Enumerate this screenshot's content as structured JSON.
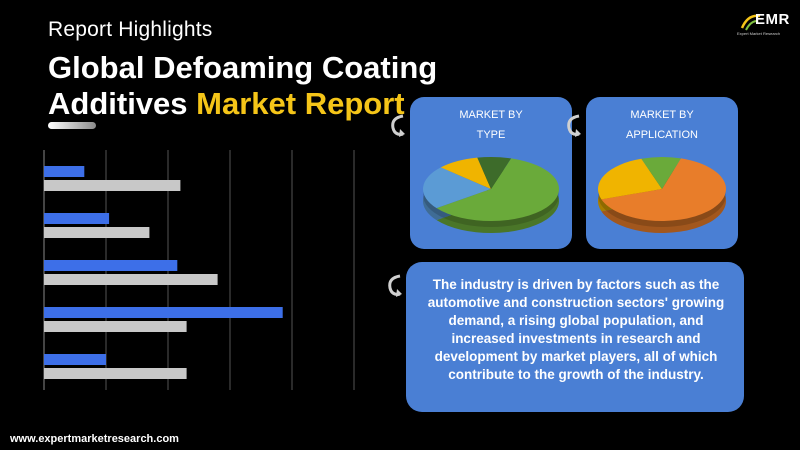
{
  "header": {
    "subtitle": "Report Highlights",
    "title_line1": "Global Defoaming Coating",
    "title_line2_plain": "Additives ",
    "title_line2_highlight": "Market Report"
  },
  "logo": {
    "text": "EMR",
    "tagline": "Expert Market Research"
  },
  "cards": {
    "type": {
      "title_line1": "MARKET BY",
      "title_line2": "TYPE"
    },
    "application": {
      "title_line1": "MARKET BY",
      "title_line2": "APPLICATION"
    }
  },
  "description": "The industry is driven by factors such as the automotive and construction sectors' growing demand, a rising global population, and increased investments in research and development by market players, all of which contribute to the growth of the industry.",
  "footer": {
    "url": "www.expertmarketresearch.com"
  },
  "colors": {
    "accent": "#f5c518",
    "card_blue": "#4a7fd4",
    "bar_blue": "#3d6fe8",
    "bar_gray": "#c8c8c8",
    "pie_green": "#6aaa3a",
    "pie_light_blue": "#5b9bd5",
    "pie_yellow": "#f0b400",
    "pie_dark_green": "#3d6b2a",
    "pie_orange": "#e87d2a"
  },
  "chart_data": [
    {
      "type": "bar",
      "orientation": "horizontal",
      "categories": [
        "",
        "",
        "",
        "",
        ""
      ],
      "series": [
        {
          "values": [
            0.13,
            0.21,
            0.43,
            0.77,
            0.2
          ]
        },
        {
          "values": [
            0.44,
            0.34,
            0.56,
            0.46,
            0.46
          ]
        }
      ],
      "xlim": [
        0,
        1
      ],
      "grid": true
    },
    {
      "type": "pie",
      "slices": [
        {
          "value": 0.6,
          "color": "#6aaa3a"
        },
        {
          "value": 0.22,
          "color": "#5b9bd5"
        },
        {
          "value": 0.1,
          "color": "#f0b400"
        },
        {
          "value": 0.08,
          "color": "#3d6b2a"
        }
      ]
    },
    {
      "type": "pie",
      "slices": [
        {
          "value": 0.65,
          "color": "#e87d2a"
        },
        {
          "value": 0.25,
          "color": "#f0b400"
        },
        {
          "value": 0.1,
          "color": "#6aaa3a"
        }
      ]
    }
  ]
}
